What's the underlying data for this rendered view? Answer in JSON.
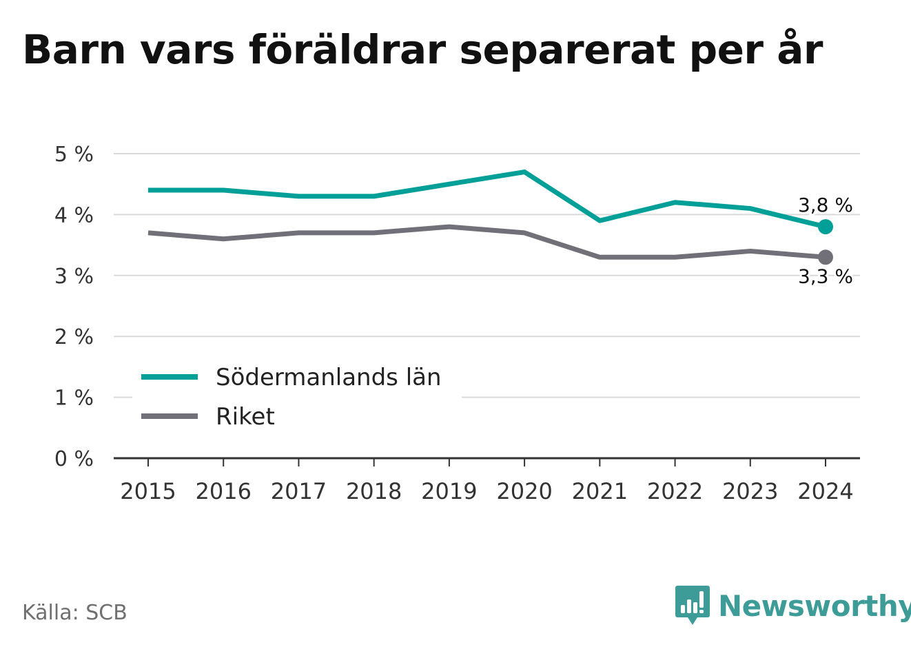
{
  "title": "Barn vars föräldrar separerat per år",
  "source": "Källa: SCB",
  "brand": {
    "name": "Newsworthy",
    "color": "#3e9c98"
  },
  "chart_data": {
    "type": "line",
    "title": "Barn vars föräldrar separerat per år",
    "x": [
      "2015",
      "2016",
      "2017",
      "2018",
      "2019",
      "2020",
      "2021",
      "2022",
      "2023",
      "2024"
    ],
    "ylim": [
      0,
      5
    ],
    "yticks": [
      0,
      1,
      2,
      3,
      4,
      5
    ],
    "ytick_labels": [
      "0 %",
      "1 %",
      "2 %",
      "3 %",
      "4 %",
      "5 %"
    ],
    "grid": true,
    "legend_position": "bottom-left",
    "series": [
      {
        "name": "Södermanlands län",
        "color": "#00a098",
        "values": [
          4.4,
          4.4,
          4.3,
          4.3,
          4.5,
          4.7,
          3.9,
          4.2,
          4.1,
          3.8
        ],
        "end_label": "3,8 %"
      },
      {
        "name": "Riket",
        "color": "#717078",
        "values": [
          3.7,
          3.6,
          3.7,
          3.7,
          3.8,
          3.7,
          3.3,
          3.3,
          3.4,
          3.3
        ],
        "end_label": "3,3 %"
      }
    ]
  }
}
